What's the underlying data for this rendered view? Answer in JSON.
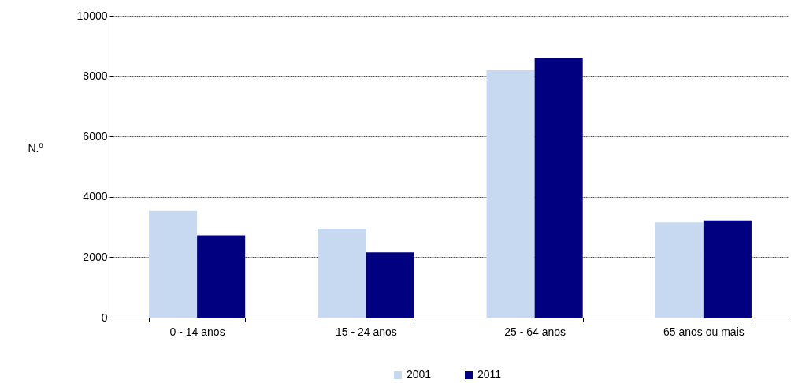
{
  "chart_data": {
    "type": "bar",
    "ylabel": "N.º",
    "categories": [
      "0 - 14 anos",
      "15 - 24 anos",
      "25 - 64 anos",
      "65 anos ou mais"
    ],
    "series": [
      {
        "name": "2001",
        "color": "#c6d9f1",
        "values": [
          3530,
          2950,
          8200,
          3150
        ]
      },
      {
        "name": "2011",
        "color": "#000080",
        "values": [
          2730,
          2160,
          8610,
          3220
        ]
      }
    ],
    "ylim": [
      0,
      10000
    ],
    "yticks": [
      0,
      2000,
      4000,
      6000,
      8000,
      10000
    ],
    "grid": "y",
    "legend": "bottom"
  }
}
